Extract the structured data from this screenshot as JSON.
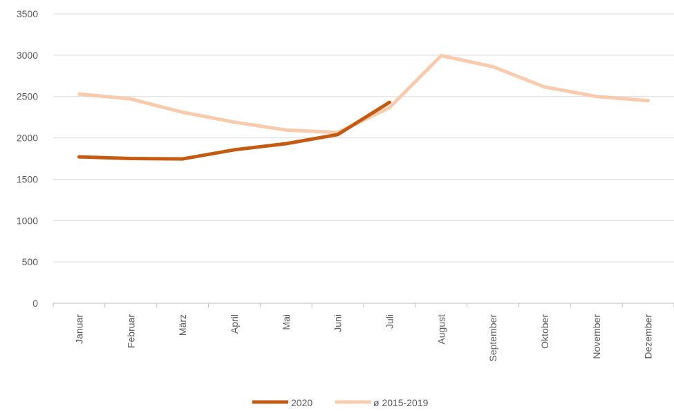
{
  "chart_data": {
    "type": "line",
    "title": "",
    "xlabel": "",
    "ylabel": "",
    "categories": [
      "Januar",
      "Februar",
      "März",
      "April",
      "Mai",
      "Juni",
      "Juli",
      "August",
      "September",
      "Oktober",
      "November",
      "Dezember"
    ],
    "ylim": [
      0,
      3500
    ],
    "yticks": [
      "0",
      "500",
      "1000",
      "1500",
      "2000",
      "2500",
      "3000",
      "3500"
    ],
    "grid": true,
    "legend_position": "bottom",
    "series": [
      {
        "name": "2020",
        "color": "#C55A11",
        "values": [
          1770,
          1750,
          1745,
          1855,
          1930,
          2040,
          2430,
          null,
          null,
          null,
          null,
          null
        ]
      },
      {
        "name": "ø 2015-2019",
        "color": "#F8CBAD",
        "values": [
          2530,
          2470,
          2310,
          2190,
          2095,
          2065,
          2365,
          2995,
          2860,
          2615,
          2500,
          2450
        ]
      }
    ]
  }
}
